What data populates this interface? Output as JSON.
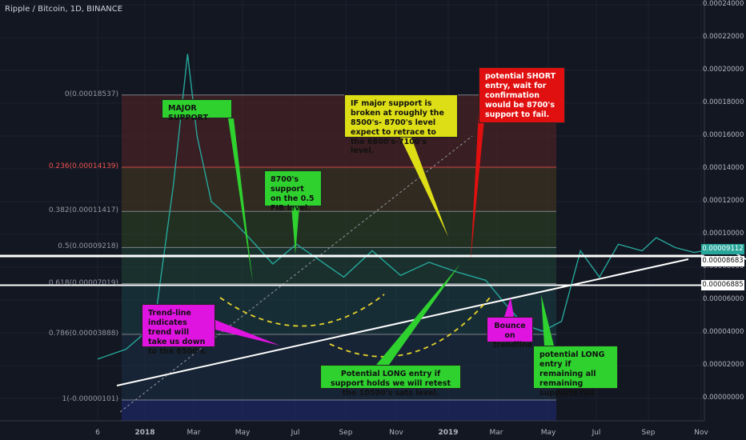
{
  "header": {
    "title": "Ripple / Bitcoin, 1D, BINANCE"
  },
  "chart_data": {
    "type": "line",
    "title": "Ripple / Bitcoin, 1D, BINANCE",
    "xlabel": "",
    "ylabel": "",
    "ylim": [
      -5e-06,
      2.4e-05
    ],
    "grid": true,
    "x_ticks": [
      "6",
      "2018",
      "Mar",
      "May",
      "Jul",
      "Sep",
      "Nov",
      "2019",
      "Mar",
      "May",
      "Jul",
      "Sep",
      "Nov"
    ],
    "y_ticks": [
      "0.00024000",
      "0.00022000",
      "0.00020000",
      "0.00018000",
      "0.00016000",
      "0.00014000",
      "0.00012000",
      "0.00010000",
      "0.00008000",
      "0.00006000",
      "0.00004000",
      "0.00002000",
      "0.00000000"
    ],
    "y_tick_values": [
      2.4e-05,
      2.2e-05,
      2e-05,
      1.8e-05,
      1.6e-05,
      1.4e-05,
      1.2e-05,
      1e-05,
      8e-06,
      6e-06,
      4e-06,
      2e-06,
      0.0
    ],
    "price_labels": [
      {
        "label": "0.00009112",
        "value": 9.112e-06,
        "color": "#26a69a"
      },
      {
        "label": "0.00008683",
        "value": 8.683e-06,
        "color": "#ffffff"
      },
      {
        "label": "0.00006885",
        "value": 6.885e-06,
        "color": "#ffffff"
      }
    ],
    "fib_levels": [
      {
        "label": "0(0.00018537)",
        "value": 1.85e-05,
        "color": "#9598a1"
      },
      {
        "label": "0.236(0.00014139)",
        "value": 1.41e-05,
        "color": "#ef5350"
      },
      {
        "label": "0.382(0.00011417)",
        "value": 1.14e-05,
        "color": "#9598a1"
      },
      {
        "label": "0.5(0.00009218)",
        "value": 9.2e-06,
        "color": "#9598a1"
      },
      {
        "label": "0.618(0.00007019)",
        "value": 7e-06,
        "color": "#9598a1"
      },
      {
        "label": "0.786(0.00003888)",
        "value": 3.9e-06,
        "color": "#9598a1"
      },
      {
        "label": "1(-0.00000101)",
        "value": -1e-07,
        "color": "#9598a1"
      }
    ],
    "fib_band_colors": [
      "#5a2525",
      "#4a3a1f",
      "#2f4622",
      "#1f4636",
      "#1b3f47",
      "#1c2f45",
      "#1e2a72"
    ],
    "price_series": {
      "name": "",
      "color": "#26a69a",
      "x_month_index": [
        0,
        0.6,
        1.2,
        1.6,
        1.9,
        2.1,
        2.4,
        2.8,
        3.2,
        3.7,
        4.2,
        4.6,
        5.2,
        5.8,
        6.4,
        7.0,
        7.6,
        8.2,
        8.6,
        9.0,
        9.4,
        9.8,
        10.2,
        10.6,
        11.0,
        11.5,
        11.8,
        12.2,
        12.6,
        13.0,
        13.3
      ],
      "y_value": [
        2.4e-06,
        3e-06,
        4.5e-06,
        1.3e-05,
        2.1e-05,
        1.6e-05,
        1.2e-05,
        1.1e-05,
        9.8e-06,
        8.2e-06,
        9.4e-06,
        8.6e-06,
        7.4e-06,
        9e-06,
        7.5e-06,
        8.3e-06,
        7.7e-06,
        7.2e-06,
        5.8e-06,
        4.5e-06,
        4.1e-06,
        4.7e-06,
        9e-06,
        7.4e-06,
        9.4e-06,
        9e-06,
        9.8e-06,
        9.2e-06,
        8.9e-06,
        9.1e-06,
        9.1e-06
      ]
    },
    "projection": {
      "x_month_index": [
        13.5,
        14.0,
        14.5,
        15.0,
        15.3,
        15.6,
        16.0
      ],
      "y_value": [
        8.8e-06,
        8e-06,
        7.9e-06,
        7.3e-06,
        7.5e-06,
        6.9e-06,
        7.1e-06
      ]
    }
  },
  "annotations": {
    "major_support": "MAJOR SUPPORT",
    "fib_support": "8700's support on the 0.5 FIB level.",
    "major_broken": "IF major support is broken at  roughly the 8500's- 8700's level expect to retrace to the 6800's-7100's level.",
    "short_entry": "potential SHORT entry, wait for confirmation would be 8700's support to fail.",
    "trendline": "Trend-line indicates trend will take us down to the 6500's.",
    "long_entry_support": "Potential LONG entry if support holds we will retest the 10500's sats level.",
    "bounce": "Bounce on trendline",
    "long_entry_remaining": "potential LONG entry if remaining all remaining supports fail."
  },
  "colors": {
    "background": "#131722",
    "green_note": "#2fd12f",
    "yellow_note": "#dede17",
    "red_note": "#e01010",
    "magenta_note": "#e014e0",
    "support_line": "#ffffff",
    "dashed_arrow": "#e8d42a"
  }
}
